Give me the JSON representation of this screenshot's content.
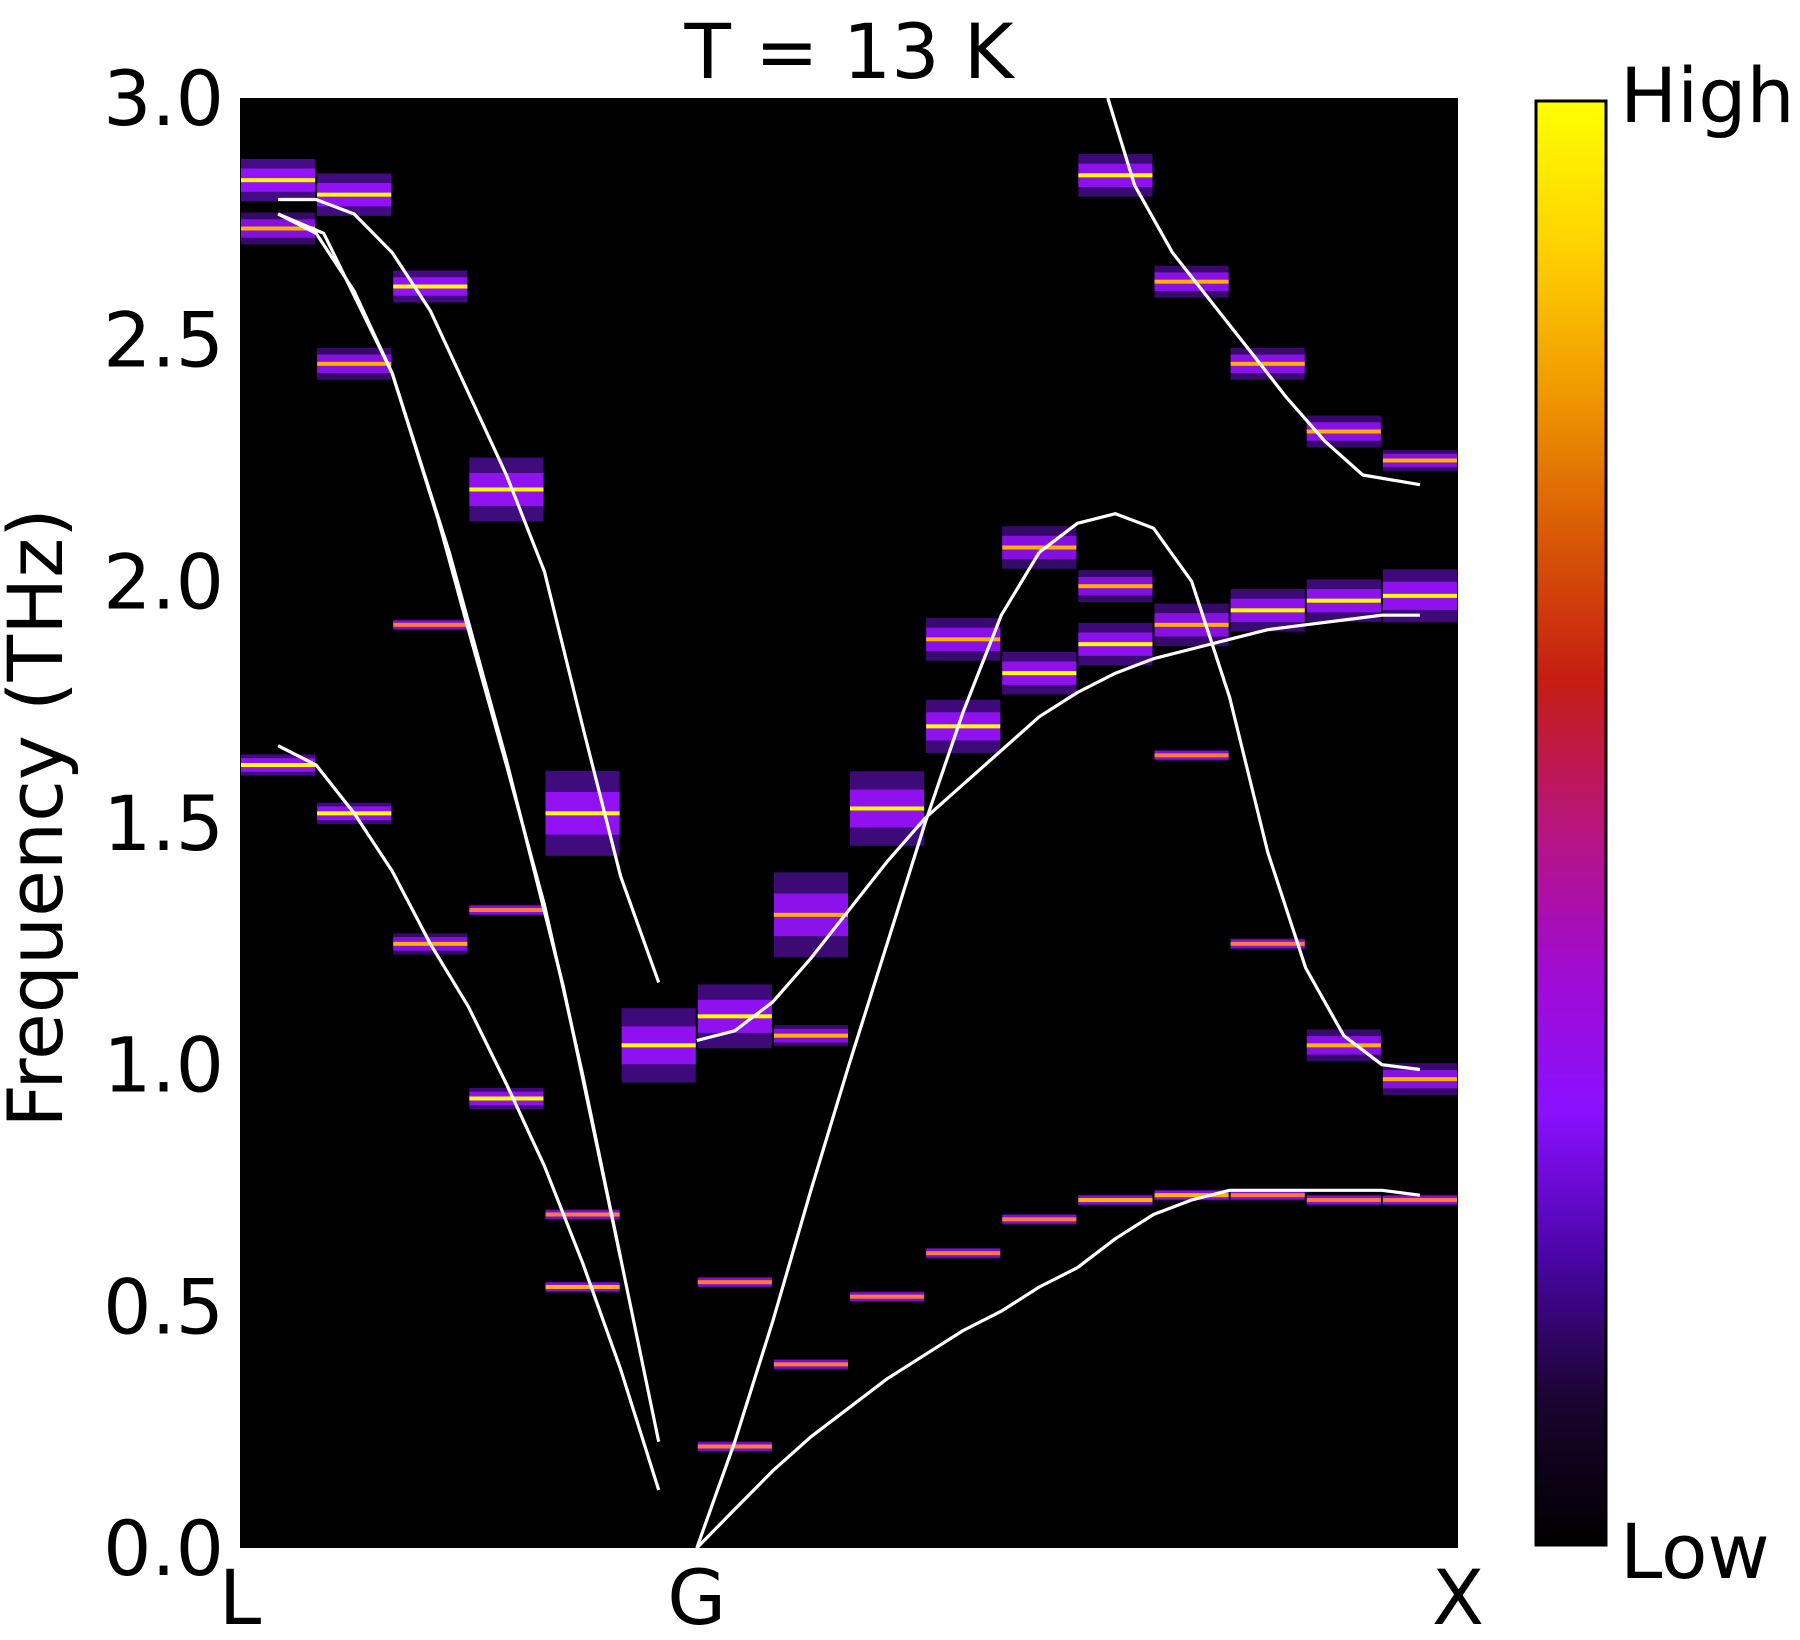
{
  "chart_data": {
    "type": "heatmap",
    "title": "T = 13 K",
    "xlabel": "",
    "ylabel": "Frequency (THz)",
    "ylim": [
      0.0,
      3.0
    ],
    "yticks": [
      "0.0",
      "0.5",
      "1.0",
      "1.5",
      "2.0",
      "2.5",
      "3.0"
    ],
    "xticks": [
      "L",
      "G",
      "X"
    ],
    "x_range": [
      -1,
      1
    ],
    "colorbar": {
      "high_label": "High",
      "low_label": "Low",
      "colors": [
        "#000000",
        "#1a0430",
        "#4b05a8",
        "#8a10ff",
        "#a10bd0",
        "#b8157a",
        "#c61d12",
        "#d95a06",
        "#f09a00",
        "#ffd200",
        "#ffff00"
      ]
    },
    "line_color": "#ffffff",
    "q_columns": [
      -0.9,
      -0.7,
      -0.5,
      -0.3,
      -0.1,
      0.1,
      0.3,
      0.5,
      0.7,
      0.9,
      1.1,
      1.3,
      1.5,
      1.7,
      1.9
    ],
    "peaks": [
      {
        "q": -0.9,
        "f": 2.83,
        "w": 1.0,
        "s": 0.04
      },
      {
        "q": -0.9,
        "f": 2.73,
        "w": 0.6,
        "s": 0.03
      },
      {
        "q": -0.9,
        "f": 1.62,
        "w": 0.9,
        "s": 0.02
      },
      {
        "q": -0.7,
        "f": 2.8,
        "w": 0.95,
        "s": 0.04
      },
      {
        "q": -0.7,
        "f": 2.45,
        "w": 0.65,
        "s": 0.03
      },
      {
        "q": -0.7,
        "f": 1.52,
        "w": 0.85,
        "s": 0.02
      },
      {
        "q": -0.5,
        "f": 2.61,
        "w": 0.95,
        "s": 0.03
      },
      {
        "q": -0.5,
        "f": 1.91,
        "w": 0.5,
        "s": 0.01
      },
      {
        "q": -0.5,
        "f": 1.25,
        "w": 0.6,
        "s": 0.02
      },
      {
        "q": -0.3,
        "f": 2.19,
        "w": 0.9,
        "s": 0.06
      },
      {
        "q": -0.3,
        "f": 1.32,
        "w": 0.55,
        "s": 0.01
      },
      {
        "q": -0.3,
        "f": 0.93,
        "w": 0.85,
        "s": 0.02
      },
      {
        "q": -0.1,
        "f": 1.52,
        "w": 0.9,
        "s": 0.08
      },
      {
        "q": -0.1,
        "f": 0.69,
        "w": 0.35,
        "s": 0.01
      },
      {
        "q": -0.1,
        "f": 0.54,
        "w": 0.6,
        "s": 0.01
      },
      {
        "q": 0.1,
        "f": 1.04,
        "w": 0.85,
        "s": 0.07
      },
      {
        "q": 0.3,
        "f": 1.1,
        "w": 0.85,
        "s": 0.06
      },
      {
        "q": 0.3,
        "f": 0.55,
        "w": 0.45,
        "s": 0.01
      },
      {
        "q": 0.3,
        "f": 0.21,
        "w": 0.35,
        "s": 0.01
      },
      {
        "q": 0.5,
        "f": 1.31,
        "w": 0.75,
        "s": 0.08
      },
      {
        "q": 0.5,
        "f": 1.06,
        "w": 0.6,
        "s": 0.02
      },
      {
        "q": 0.5,
        "f": 0.38,
        "w": 0.35,
        "s": 0.01
      },
      {
        "q": 0.7,
        "f": 1.53,
        "w": 0.85,
        "s": 0.07
      },
      {
        "q": 0.7,
        "f": 0.52,
        "w": 0.45,
        "s": 0.01
      },
      {
        "q": 0.9,
        "f": 1.88,
        "w": 0.7,
        "s": 0.04
      },
      {
        "q": 0.9,
        "f": 1.7,
        "w": 0.85,
        "s": 0.05
      },
      {
        "q": 0.9,
        "f": 0.61,
        "w": 0.4,
        "s": 0.01
      },
      {
        "q": 1.1,
        "f": 2.07,
        "w": 0.6,
        "s": 0.04
      },
      {
        "q": 1.1,
        "f": 1.81,
        "w": 0.85,
        "s": 0.04
      },
      {
        "q": 1.1,
        "f": 0.68,
        "w": 0.4,
        "s": 0.01
      },
      {
        "q": 1.3,
        "f": 2.84,
        "w": 0.8,
        "s": 0.04
      },
      {
        "q": 1.3,
        "f": 1.99,
        "w": 0.6,
        "s": 0.03
      },
      {
        "q": 1.3,
        "f": 1.87,
        "w": 0.8,
        "s": 0.04
      },
      {
        "q": 1.3,
        "f": 0.72,
        "w": 0.6,
        "s": 0.01
      },
      {
        "q": 1.5,
        "f": 2.62,
        "w": 0.7,
        "s": 0.03
      },
      {
        "q": 1.5,
        "f": 1.91,
        "w": 0.65,
        "s": 0.04
      },
      {
        "q": 1.5,
        "f": 1.64,
        "w": 0.5,
        "s": 0.01
      },
      {
        "q": 1.5,
        "f": 0.73,
        "w": 0.65,
        "s": 0.01
      },
      {
        "q": 1.7,
        "f": 2.45,
        "w": 0.7,
        "s": 0.03
      },
      {
        "q": 1.7,
        "f": 1.94,
        "w": 0.8,
        "s": 0.04
      },
      {
        "q": 1.7,
        "f": 1.25,
        "w": 0.5,
        "s": 0.01
      },
      {
        "q": 1.7,
        "f": 0.73,
        "w": 0.5,
        "s": 0.01
      },
      {
        "q": 1.9,
        "f": 2.31,
        "w": 0.65,
        "s": 0.03
      },
      {
        "q": 1.9,
        "f": 1.96,
        "w": 0.8,
        "s": 0.04
      },
      {
        "q": 1.9,
        "f": 1.04,
        "w": 0.65,
        "s": 0.03
      },
      {
        "q": 1.9,
        "f": 0.72,
        "w": 0.55,
        "s": 0.01
      },
      {
        "q": 2.1,
        "f": 2.25,
        "w": 0.6,
        "s": 0.02
      },
      {
        "q": 2.1,
        "f": 1.97,
        "w": 0.85,
        "s": 0.05
      },
      {
        "q": 2.1,
        "f": 0.97,
        "w": 0.65,
        "s": 0.03
      },
      {
        "q": 2.1,
        "f": 0.72,
        "w": 0.55,
        "s": 0.01
      }
    ],
    "series": [
      {
        "x": [
          -0.9,
          -0.78,
          -0.6,
          -0.45,
          -0.3,
          -0.15,
          0.0
        ],
        "y": [
          2.76,
          2.72,
          2.43,
          2.06,
          1.63,
          1.16,
          0.6
        ]
      },
      {
        "x": [
          -0.9,
          -0.8,
          -0.7,
          -0.6,
          -0.48,
          -0.4,
          -0.3,
          -0.2,
          -0.1,
          0.0,
          0.1
        ],
        "y": [
          2.76,
          2.72,
          2.6,
          2.43,
          2.13,
          1.9,
          1.62,
          1.33,
          0.98,
          0.6,
          0.22
        ]
      },
      {
        "x": [
          -0.9,
          -0.8,
          -0.7,
          -0.6,
          -0.5,
          -0.4,
          -0.3,
          -0.2,
          -0.1,
          0.0,
          0.1
        ],
        "y": [
          2.79,
          2.79,
          2.76,
          2.68,
          2.56,
          2.39,
          2.22,
          2.02,
          1.7,
          1.39,
          1.17
        ]
      },
      {
        "x": [
          -0.9,
          -0.8,
          -0.7,
          -0.6,
          -0.5,
          -0.4,
          -0.3,
          -0.2,
          -0.1,
          0.0,
          0.1
        ],
        "y": [
          1.66,
          1.62,
          1.52,
          1.4,
          1.25,
          1.12,
          0.96,
          0.79,
          0.59,
          0.37,
          0.12
        ]
      },
      {
        "x": [
          0.2,
          0.3,
          0.4,
          0.5,
          0.6,
          0.7,
          0.8,
          0.9,
          1.0,
          1.1,
          1.2
        ],
        "y": [
          0.0,
          0.08,
          0.16,
          0.23,
          0.29,
          0.35,
          0.4,
          0.45,
          0.49,
          0.54,
          0.58
        ]
      },
      {
        "x": [
          1.2,
          1.3,
          1.4,
          1.5,
          1.6,
          1.7,
          1.8,
          1.9,
          2.0,
          2.1
        ],
        "y": [
          0.58,
          0.64,
          0.69,
          0.72,
          0.74,
          0.74,
          0.74,
          0.74,
          0.74,
          0.73
        ]
      },
      {
        "x": [
          0.2,
          0.3,
          0.4,
          0.5,
          0.6,
          0.7,
          0.8,
          0.9,
          1.0,
          1.1
        ],
        "y": [
          0.0,
          0.22,
          0.47,
          0.74,
          1.0,
          1.25,
          1.5,
          1.73,
          1.93,
          2.06
        ]
      },
      {
        "x": [
          1.1,
          1.2,
          1.3,
          1.4,
          1.5,
          1.6,
          1.7,
          1.8,
          1.9,
          2.0,
          2.1
        ],
        "y": [
          2.06,
          2.12,
          2.14,
          2.11,
          2.0,
          1.76,
          1.44,
          1.2,
          1.06,
          1.0,
          0.99
        ]
      },
      {
        "x": [
          0.2,
          0.3,
          0.4,
          0.5,
          0.6,
          0.7,
          0.8,
          0.9,
          1.0,
          1.1
        ],
        "y": [
          1.05,
          1.07,
          1.13,
          1.22,
          1.32,
          1.42,
          1.51,
          1.58,
          1.65,
          1.72
        ]
      },
      {
        "x": [
          1.1,
          1.2,
          1.3,
          1.4,
          1.5,
          1.6,
          1.7,
          1.8,
          1.9,
          2.0,
          2.1
        ],
        "y": [
          1.72,
          1.77,
          1.81,
          1.84,
          1.86,
          1.88,
          1.9,
          1.91,
          1.92,
          1.93,
          1.93
        ]
      },
      {
        "x": [
          1.28,
          1.35,
          1.45,
          1.55,
          1.65,
          1.75,
          1.85,
          1.95,
          2.1
        ],
        "y": [
          3.0,
          2.82,
          2.68,
          2.58,
          2.48,
          2.38,
          2.29,
          2.22,
          2.2
        ]
      }
    ]
  }
}
